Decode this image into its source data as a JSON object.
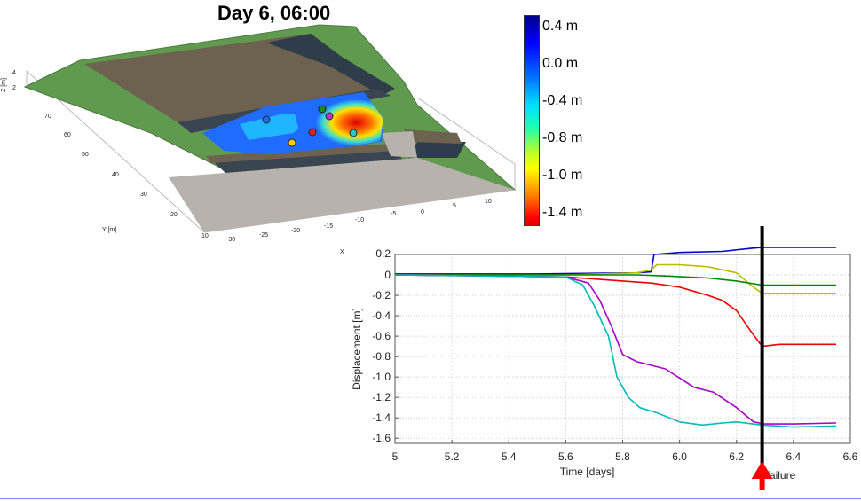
{
  "header": {
    "title": "Day 6, 06:00"
  },
  "colorbar": {
    "labels": [
      "0.4 m",
      "0.0 m",
      "-0.4 m",
      "-0.8 m",
      "-1.0 m",
      "-1.4 m"
    ]
  },
  "scene3d": {
    "zlabel": "Z [m]",
    "ylabel": "Y [m]",
    "xlabel": "X [m]",
    "z_ticks": [
      "4",
      "2"
    ],
    "y_ticks": [
      "70",
      "60",
      "50",
      "40",
      "30",
      "20",
      "10"
    ],
    "x_ticks": [
      "-30",
      "-25",
      "-20",
      "-15",
      "-10",
      "-5",
      "0",
      "5",
      "10"
    ]
  },
  "annotation": {
    "text": "failure",
    "marker_color": "#ff0000"
  },
  "chart_data": {
    "type": "line",
    "xlabel": "Time [days]",
    "ylabel": "Displacement [m]",
    "xlim": [
      5,
      6.6
    ],
    "ylim": [
      -1.65,
      0.2
    ],
    "xticks": [
      5,
      5.2,
      5.4,
      5.6,
      5.8,
      6.0,
      6.2,
      6.4,
      6.6
    ],
    "yticks": [
      0,
      -0.2,
      -0.4,
      -0.6,
      -0.8,
      -1.0,
      -1.2,
      -1.4,
      -1.6
    ],
    "xtick_labels": [
      "5",
      "5.2",
      "5.4",
      "5.6",
      "5.8",
      "6.0",
      "6.2",
      "6.4",
      "6.6"
    ],
    "ytick_labels": [
      "0",
      "-0.2",
      "-0.4",
      "-0.6",
      "-0.8",
      "-1.0",
      "-1.2",
      "-1.4",
      "-1.6"
    ],
    "top_partial_tick": "0.2",
    "grid": true,
    "vline_x": 6.29,
    "series": [
      {
        "color": "#0000cc",
        "x": [
          5,
          5.5,
          5.85,
          5.9,
          5.91,
          6.0,
          6.15,
          6.25,
          6.29,
          6.4,
          6.55
        ],
        "y": [
          0.01,
          0.01,
          0.02,
          0.03,
          0.2,
          0.22,
          0.23,
          0.26,
          0.27,
          0.27,
          0.27
        ]
      },
      {
        "color": "#bbbb00",
        "x": [
          5,
          5.6,
          5.85,
          5.9,
          5.92,
          6.0,
          6.1,
          6.2,
          6.25,
          6.29,
          6.35,
          6.55
        ],
        "y": [
          0.0,
          0.0,
          0.02,
          0.05,
          0.1,
          0.1,
          0.08,
          0.02,
          -0.1,
          -0.18,
          -0.18,
          -0.18
        ]
      },
      {
        "color": "#008800",
        "x": [
          5,
          5.6,
          5.85,
          5.95,
          6.1,
          6.2,
          6.29,
          6.4,
          6.55
        ],
        "y": [
          0.0,
          0.0,
          0.0,
          -0.01,
          -0.03,
          -0.06,
          -0.1,
          -0.1,
          -0.1
        ]
      },
      {
        "color": "#ee0000",
        "x": [
          5,
          5.6,
          5.7,
          5.8,
          5.9,
          6.0,
          6.1,
          6.15,
          6.2,
          6.25,
          6.29,
          6.35,
          6.55
        ],
        "y": [
          0.0,
          -0.02,
          -0.04,
          -0.06,
          -0.08,
          -0.12,
          -0.2,
          -0.25,
          -0.35,
          -0.55,
          -0.7,
          -0.68,
          -0.68
        ]
      },
      {
        "color": "#aa00cc",
        "x": [
          5,
          5.6,
          5.68,
          5.72,
          5.76,
          5.8,
          5.85,
          5.95,
          6.05,
          6.12,
          6.2,
          6.26,
          6.3,
          6.4,
          6.55
        ],
        "y": [
          0.0,
          -0.02,
          -0.08,
          -0.25,
          -0.5,
          -0.78,
          -0.85,
          -0.92,
          -1.1,
          -1.15,
          -1.3,
          -1.44,
          -1.46,
          -1.46,
          -1.45
        ]
      },
      {
        "color": "#00bbbb",
        "x": [
          5,
          5.6,
          5.66,
          5.7,
          5.75,
          5.78,
          5.82,
          5.86,
          5.92,
          6.0,
          6.08,
          6.15,
          6.2,
          6.29,
          6.4,
          6.55
        ],
        "y": [
          0.0,
          -0.02,
          -0.1,
          -0.3,
          -0.6,
          -1.0,
          -1.2,
          -1.3,
          -1.35,
          -1.44,
          -1.47,
          -1.45,
          -1.44,
          -1.47,
          -1.49,
          -1.48
        ]
      }
    ]
  }
}
